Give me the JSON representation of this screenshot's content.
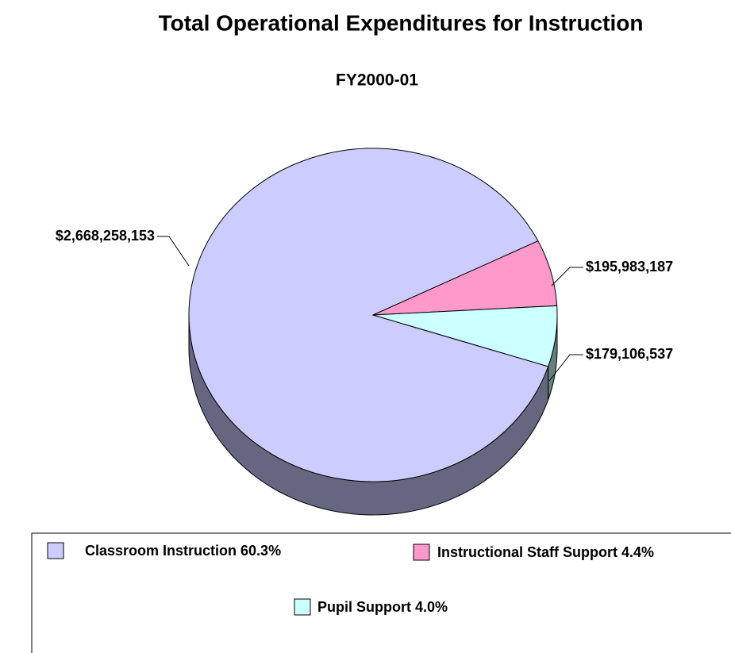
{
  "chart_data": {
    "type": "pie",
    "title": "Total Operational Expenditures for Instruction",
    "subtitle": "FY2000-01",
    "categories": [
      "Classroom Instruction 60.3%",
      "Instructional Staff Support 4.4%",
      "Pupil Support 4.0%"
    ],
    "values": [
      2668258153,
      195983187,
      179106537
    ],
    "value_labels": [
      "$2,668,258,153",
      "$195,983,187",
      "$179,106,537"
    ],
    "colors": [
      "#ccccff",
      "#ff99cc",
      "#ccffff"
    ],
    "legend": "bottom"
  }
}
